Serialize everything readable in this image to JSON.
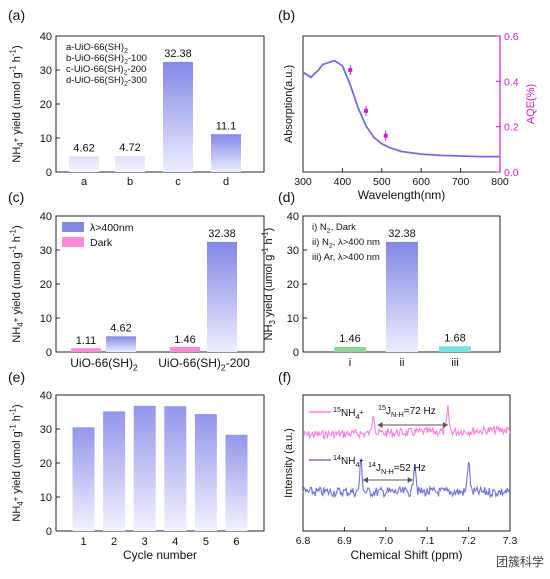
{
  "panels": [
    "(a)",
    "(b)",
    "(c)",
    "(d)",
    "(e)",
    "(f)"
  ],
  "watermark": "团簇科学",
  "colors": {
    "bar_top": "#8488e6",
    "bar_bottom": "#eceefe",
    "pink": "#ff8ad8",
    "green": "#8fd49a",
    "cyan": "#78e0e0",
    "blue_line": "#7070e0",
    "magenta": "#d020d0",
    "pink_line": "#ff80e0"
  },
  "chart_data": [
    {
      "panel": "(a)",
      "type": "bar",
      "categories": [
        "a",
        "b",
        "c",
        "d"
      ],
      "values": [
        4.62,
        4.72,
        32.38,
        11.1
      ],
      "value_labels": [
        "4.62",
        "4.72",
        "32.38",
        "11.1"
      ],
      "ylabel": "NH4+ yield (umol g-1 h-1)",
      "ylim": [
        0,
        40
      ],
      "yticks": [
        "0",
        "10",
        "20",
        "30",
        "40"
      ],
      "legend": [
        "a-UiO-66(SH)2",
        "b-UiO-66(SH)2-100",
        "c-UiO-66(SH)2-200",
        "d-UiO-66(SH)2-300"
      ]
    },
    {
      "panel": "(b)",
      "type": "line",
      "xlabel": "Wavelength(nm)",
      "ylabel": "Absorption(a.u.)",
      "y2label": "AQE(%)",
      "xlim": [
        300,
        800
      ],
      "xticks": [
        "300",
        "400",
        "500",
        "600",
        "700",
        "800"
      ],
      "y2lim": [
        0,
        0.6
      ],
      "y2ticks": [
        "0.0",
        "0.2",
        "0.4",
        "0.6"
      ],
      "absorption_x": [
        300,
        320,
        340,
        350,
        360,
        380,
        400,
        420,
        440,
        460,
        480,
        500,
        520,
        550,
        600,
        650,
        700,
        750,
        800
      ],
      "absorption_y": [
        0.78,
        0.74,
        0.8,
        0.84,
        0.85,
        0.87,
        0.83,
        0.68,
        0.5,
        0.36,
        0.27,
        0.22,
        0.19,
        0.16,
        0.14,
        0.13,
        0.125,
        0.12,
        0.12
      ],
      "aqe_x": [
        420,
        460,
        510
      ],
      "aqe_y": [
        0.45,
        0.27,
        0.16
      ]
    },
    {
      "panel": "(c)",
      "type": "bar",
      "categories": [
        "UiO-66(SH)2",
        "UiO-66(SH)2-200"
      ],
      "series": [
        {
          "name": "λ>400nm",
          "values": [
            4.62,
            32.38
          ]
        },
        {
          "name": "Dark",
          "values": [
            1.11,
            1.46
          ]
        }
      ],
      "value_labels": {
        "light": [
          "4.62",
          "32.38"
        ],
        "dark": [
          "1.11",
          "1.46"
        ]
      },
      "ylabel": "NH4+ yield (umol g-1 h-1)",
      "ylim": [
        0,
        40
      ],
      "yticks": [
        "0",
        "10",
        "20",
        "30",
        "40"
      ]
    },
    {
      "panel": "(d)",
      "type": "bar",
      "categories": [
        "i",
        "ii",
        "iii"
      ],
      "values": [
        1.46,
        32.38,
        1.68
      ],
      "value_labels": [
        "1.46",
        "32.38",
        "1.68"
      ],
      "ylabel": "NH3 yield (umol g-1 h-1)",
      "ylim": [
        0,
        40
      ],
      "yticks": [
        "0",
        "10",
        "20",
        "30",
        "40"
      ],
      "conditions": [
        "i)  N2, Dark",
        "ii)  N2, λ>400 nm",
        "iii)  Ar, λ>400 nm"
      ]
    },
    {
      "panel": "(e)",
      "type": "bar",
      "categories": [
        "1",
        "2",
        "3",
        "4",
        "5",
        "6"
      ],
      "values": [
        30.5,
        35.2,
        36.8,
        36.7,
        34.4,
        28.3
      ],
      "xlabel": "Cycle number",
      "ylabel": "NH4+ yield (umol g-1 h-1)",
      "ylim": [
        0,
        40
      ],
      "yticks": [
        "0",
        "10",
        "20",
        "30",
        "40"
      ]
    },
    {
      "panel": "(f)",
      "type": "line",
      "xlabel": "Chemical Shift (ppm)",
      "ylabel": "Intensity (a.u.)",
      "xlim": [
        6.8,
        7.3
      ],
      "xticks": [
        "6.8",
        "6.9",
        "7.0",
        "7.1",
        "7.2",
        "7.3"
      ],
      "series": [
        {
          "name": "15NH4+",
          "peaks": [
            6.97,
            7.15
          ],
          "coupling": "15J N-H =72 Hz"
        },
        {
          "name": "14NH4+",
          "peaks": [
            6.94,
            7.07,
            7.2
          ],
          "coupling": "14J N-H =52 Hz"
        }
      ]
    }
  ]
}
